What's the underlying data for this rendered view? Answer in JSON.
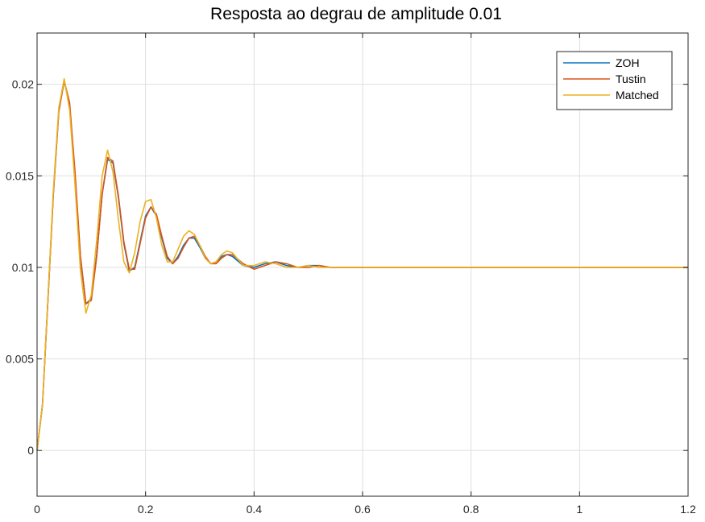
{
  "chart_data": {
    "type": "line",
    "title": "Resposta ao degrau de amplitude 0.01",
    "xlabel": "",
    "ylabel": "",
    "xlim": [
      0,
      1.2
    ],
    "ylim": [
      -0.0025,
      0.0228
    ],
    "grid": true,
    "legend_position": "top-right",
    "x_ticks": [
      0,
      0.2,
      0.4,
      0.6,
      0.8,
      1,
      1.2
    ],
    "x_tick_labels": [
      "0",
      "0.2",
      "0.4",
      "0.6",
      "0.8",
      "1",
      "1.2"
    ],
    "y_ticks": [
      0,
      0.005,
      0.01,
      0.015,
      0.02
    ],
    "y_tick_labels": [
      "0",
      "0.005",
      "0.01",
      "0.015",
      "0.02"
    ],
    "series": [
      {
        "name": "ZOH",
        "color": "#0072BD",
        "points": [
          [
            0,
            0
          ],
          [
            0.01,
            0.0025
          ],
          [
            0.02,
            0.0082
          ],
          [
            0.03,
            0.014
          ],
          [
            0.04,
            0.0185
          ],
          [
            0.05,
            0.0202
          ],
          [
            0.06,
            0.0188
          ],
          [
            0.07,
            0.015
          ],
          [
            0.08,
            0.0105
          ],
          [
            0.09,
            0.008
          ],
          [
            0.1,
            0.0083
          ],
          [
            0.11,
            0.0107
          ],
          [
            0.12,
            0.014
          ],
          [
            0.13,
            0.0159
          ],
          [
            0.14,
            0.0157
          ],
          [
            0.15,
            0.0138
          ],
          [
            0.16,
            0.0113
          ],
          [
            0.17,
            0.0098
          ],
          [
            0.18,
            0.01
          ],
          [
            0.19,
            0.0114
          ],
          [
            0.2,
            0.0128
          ],
          [
            0.21,
            0.0133
          ],
          [
            0.22,
            0.0128
          ],
          [
            0.23,
            0.0116
          ],
          [
            0.24,
            0.0105
          ],
          [
            0.25,
            0.0102
          ],
          [
            0.26,
            0.0106
          ],
          [
            0.27,
            0.0112
          ],
          [
            0.28,
            0.0116
          ],
          [
            0.29,
            0.0116
          ],
          [
            0.3,
            0.0111
          ],
          [
            0.31,
            0.0105
          ],
          [
            0.32,
            0.0102
          ],
          [
            0.33,
            0.0103
          ],
          [
            0.34,
            0.0106
          ],
          [
            0.35,
            0.0107
          ],
          [
            0.36,
            0.0106
          ],
          [
            0.38,
            0.0101
          ],
          [
            0.4,
            0.01
          ],
          [
            0.42,
            0.0102
          ],
          [
            0.44,
            0.0103
          ],
          [
            0.46,
            0.0101
          ],
          [
            0.48,
            0.01
          ],
          [
            0.5,
            0.0101
          ],
          [
            0.52,
            0.0101
          ],
          [
            0.54,
            0.01
          ],
          [
            0.56,
            0.01
          ],
          [
            0.6,
            0.01
          ],
          [
            0.7,
            0.01
          ],
          [
            0.8,
            0.01
          ],
          [
            1.0,
            0.01
          ],
          [
            1.2,
            0.01
          ]
        ]
      },
      {
        "name": "Tustin",
        "color": "#D95319",
        "points": [
          [
            0,
            0
          ],
          [
            0.01,
            0.0025
          ],
          [
            0.02,
            0.0082
          ],
          [
            0.03,
            0.014
          ],
          [
            0.04,
            0.0185
          ],
          [
            0.05,
            0.0202
          ],
          [
            0.06,
            0.019
          ],
          [
            0.07,
            0.0152
          ],
          [
            0.08,
            0.0106
          ],
          [
            0.09,
            0.008
          ],
          [
            0.1,
            0.0082
          ],
          [
            0.11,
            0.0106
          ],
          [
            0.12,
            0.014
          ],
          [
            0.13,
            0.016
          ],
          [
            0.14,
            0.0158
          ],
          [
            0.15,
            0.0139
          ],
          [
            0.16,
            0.0114
          ],
          [
            0.17,
            0.0099
          ],
          [
            0.18,
            0.0099
          ],
          [
            0.19,
            0.0113
          ],
          [
            0.2,
            0.0127
          ],
          [
            0.21,
            0.0133
          ],
          [
            0.22,
            0.0129
          ],
          [
            0.23,
            0.0117
          ],
          [
            0.24,
            0.0106
          ],
          [
            0.25,
            0.0102
          ],
          [
            0.26,
            0.0105
          ],
          [
            0.27,
            0.0111
          ],
          [
            0.28,
            0.0116
          ],
          [
            0.29,
            0.0117
          ],
          [
            0.3,
            0.0112
          ],
          [
            0.31,
            0.0106
          ],
          [
            0.32,
            0.0102
          ],
          [
            0.33,
            0.0102
          ],
          [
            0.34,
            0.0105
          ],
          [
            0.35,
            0.0107
          ],
          [
            0.36,
            0.0107
          ],
          [
            0.38,
            0.0102
          ],
          [
            0.4,
            0.0099
          ],
          [
            0.42,
            0.0101
          ],
          [
            0.44,
            0.0103
          ],
          [
            0.46,
            0.0102
          ],
          [
            0.48,
            0.01
          ],
          [
            0.5,
            0.01
          ],
          [
            0.52,
            0.0101
          ],
          [
            0.54,
            0.01
          ],
          [
            0.56,
            0.01
          ],
          [
            0.6,
            0.01
          ],
          [
            0.7,
            0.01
          ],
          [
            0.8,
            0.01
          ],
          [
            1.0,
            0.01
          ],
          [
            1.2,
            0.01
          ]
        ]
      },
      {
        "name": "Matched",
        "color": "#EDB120",
        "points": [
          [
            0,
            0
          ],
          [
            0.01,
            0.0025
          ],
          [
            0.02,
            0.0083
          ],
          [
            0.03,
            0.0142
          ],
          [
            0.04,
            0.0187
          ],
          [
            0.05,
            0.0203
          ],
          [
            0.06,
            0.0186
          ],
          [
            0.07,
            0.0145
          ],
          [
            0.08,
            0.0098
          ],
          [
            0.09,
            0.0075
          ],
          [
            0.1,
            0.0085
          ],
          [
            0.11,
            0.0115
          ],
          [
            0.12,
            0.015
          ],
          [
            0.13,
            0.0164
          ],
          [
            0.14,
            0.0152
          ],
          [
            0.15,
            0.0126
          ],
          [
            0.16,
            0.0103
          ],
          [
            0.17,
            0.0097
          ],
          [
            0.18,
            0.0108
          ],
          [
            0.19,
            0.0125
          ],
          [
            0.2,
            0.0136
          ],
          [
            0.21,
            0.0137
          ],
          [
            0.22,
            0.0127
          ],
          [
            0.23,
            0.0112
          ],
          [
            0.24,
            0.0103
          ],
          [
            0.25,
            0.0103
          ],
          [
            0.26,
            0.011
          ],
          [
            0.27,
            0.0117
          ],
          [
            0.28,
            0.012
          ],
          [
            0.29,
            0.0118
          ],
          [
            0.3,
            0.0112
          ],
          [
            0.31,
            0.0105
          ],
          [
            0.32,
            0.0102
          ],
          [
            0.33,
            0.0103
          ],
          [
            0.34,
            0.0107
          ],
          [
            0.35,
            0.0109
          ],
          [
            0.36,
            0.0108
          ],
          [
            0.38,
            0.0101
          ],
          [
            0.4,
            0.0101
          ],
          [
            0.42,
            0.0103
          ],
          [
            0.44,
            0.0102
          ],
          [
            0.46,
            0.01
          ],
          [
            0.48,
            0.01
          ],
          [
            0.5,
            0.0101
          ],
          [
            0.52,
            0.01
          ],
          [
            0.54,
            0.01
          ],
          [
            0.56,
            0.01
          ],
          [
            0.6,
            0.01
          ],
          [
            0.7,
            0.01
          ],
          [
            0.8,
            0.01
          ],
          [
            1.0,
            0.01
          ],
          [
            1.2,
            0.01
          ]
        ]
      }
    ]
  }
}
